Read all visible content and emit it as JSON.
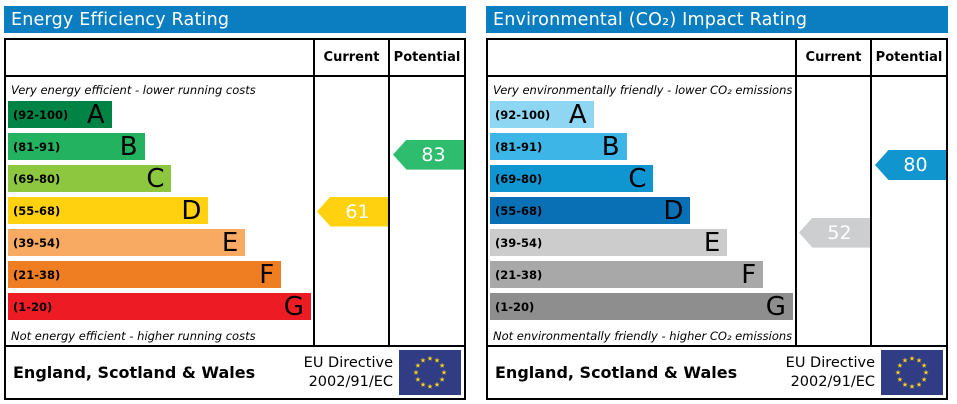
{
  "accent_colors": {
    "header_bar": "#0b7dc1",
    "frame_border": "#000000"
  },
  "chart_data": [
    {
      "type": "bar",
      "title": "Energy Efficiency Rating",
      "columns": {
        "current": "Current",
        "potential": "Potential"
      },
      "top_caption": "Very energy efficient - lower running costs",
      "bottom_caption": "Not energy efficient - higher running costs",
      "bands": [
        {
          "range": "(92-100)",
          "letter": "A",
          "min": 92,
          "max": 100,
          "color": "#008445",
          "width_pct": 34.0
        },
        {
          "range": "(81-91)",
          "letter": "B",
          "min": 81,
          "max": 91,
          "color": "#22b260",
          "width_pct": 44.8
        },
        {
          "range": "(69-80)",
          "letter": "C",
          "min": 69,
          "max": 80,
          "color": "#8dc63f",
          "width_pct": 53.6
        },
        {
          "range": "(55-68)",
          "letter": "D",
          "min": 55,
          "max": 68,
          "color": "#ffd10e",
          "width_pct": 65.7
        },
        {
          "range": "(39-54)",
          "letter": "E",
          "min": 39,
          "max": 54,
          "color": "#f8a962",
          "width_pct": 77.8
        },
        {
          "range": "(21-38)",
          "letter": "F",
          "min": 21,
          "max": 38,
          "color": "#ef7d22",
          "width_pct": 89.6
        },
        {
          "range": "(1-20)",
          "letter": "G",
          "min": 1,
          "max": 20,
          "color": "#ed1c24",
          "width_pct": 99.3
        }
      ],
      "current": {
        "label": "Current",
        "value": 61,
        "color": "#ffd10e"
      },
      "potential": {
        "label": "Potential",
        "value": 83,
        "color": "#2ebd6f"
      },
      "footer": {
        "region": "England, Scotland & Wales",
        "directive": [
          "EU Directive",
          "2002/91/EC"
        ]
      },
      "flag_colors": {
        "field": "#303d84",
        "stars": "#f7d117"
      }
    },
    {
      "type": "bar",
      "title": "Environmental (CO₂) Impact Rating",
      "columns": {
        "current": "Current",
        "potential": "Potential"
      },
      "top_caption": "Very environmentally friendly - lower CO₂ emissions",
      "bottom_caption": "Not environmentally friendly - higher CO₂ emissions",
      "bands": [
        {
          "range": "(92-100)",
          "letter": "A",
          "min": 92,
          "max": 100,
          "color": "#8ed6f2",
          "width_pct": 34.0
        },
        {
          "range": "(81-91)",
          "letter": "B",
          "min": 81,
          "max": 91,
          "color": "#3db5e6",
          "width_pct": 44.8
        },
        {
          "range": "(69-80)",
          "letter": "C",
          "min": 69,
          "max": 80,
          "color": "#0f96d1",
          "width_pct": 53.6
        },
        {
          "range": "(55-68)",
          "letter": "D",
          "min": 55,
          "max": 68,
          "color": "#0a70b6",
          "width_pct": 65.7
        },
        {
          "range": "(39-54)",
          "letter": "E",
          "min": 39,
          "max": 54,
          "color": "#cccccc",
          "width_pct": 77.8
        },
        {
          "range": "(21-38)",
          "letter": "F",
          "min": 21,
          "max": 38,
          "color": "#a8a8a8",
          "width_pct": 89.6
        },
        {
          "range": "(1-20)",
          "letter": "G",
          "min": 1,
          "max": 20,
          "color": "#8e8e8e",
          "width_pct": 99.3
        }
      ],
      "current": {
        "label": "Current",
        "value": 52,
        "color": "#ccced0"
      },
      "potential": {
        "label": "Potential",
        "value": 80,
        "color": "#1095ce"
      },
      "footer": {
        "region": "England, Scotland & Wales",
        "directive": [
          "EU Directive",
          "2002/91/EC"
        ]
      },
      "flag_colors": {
        "field": "#303d84",
        "stars": "#f7d117"
      }
    }
  ]
}
